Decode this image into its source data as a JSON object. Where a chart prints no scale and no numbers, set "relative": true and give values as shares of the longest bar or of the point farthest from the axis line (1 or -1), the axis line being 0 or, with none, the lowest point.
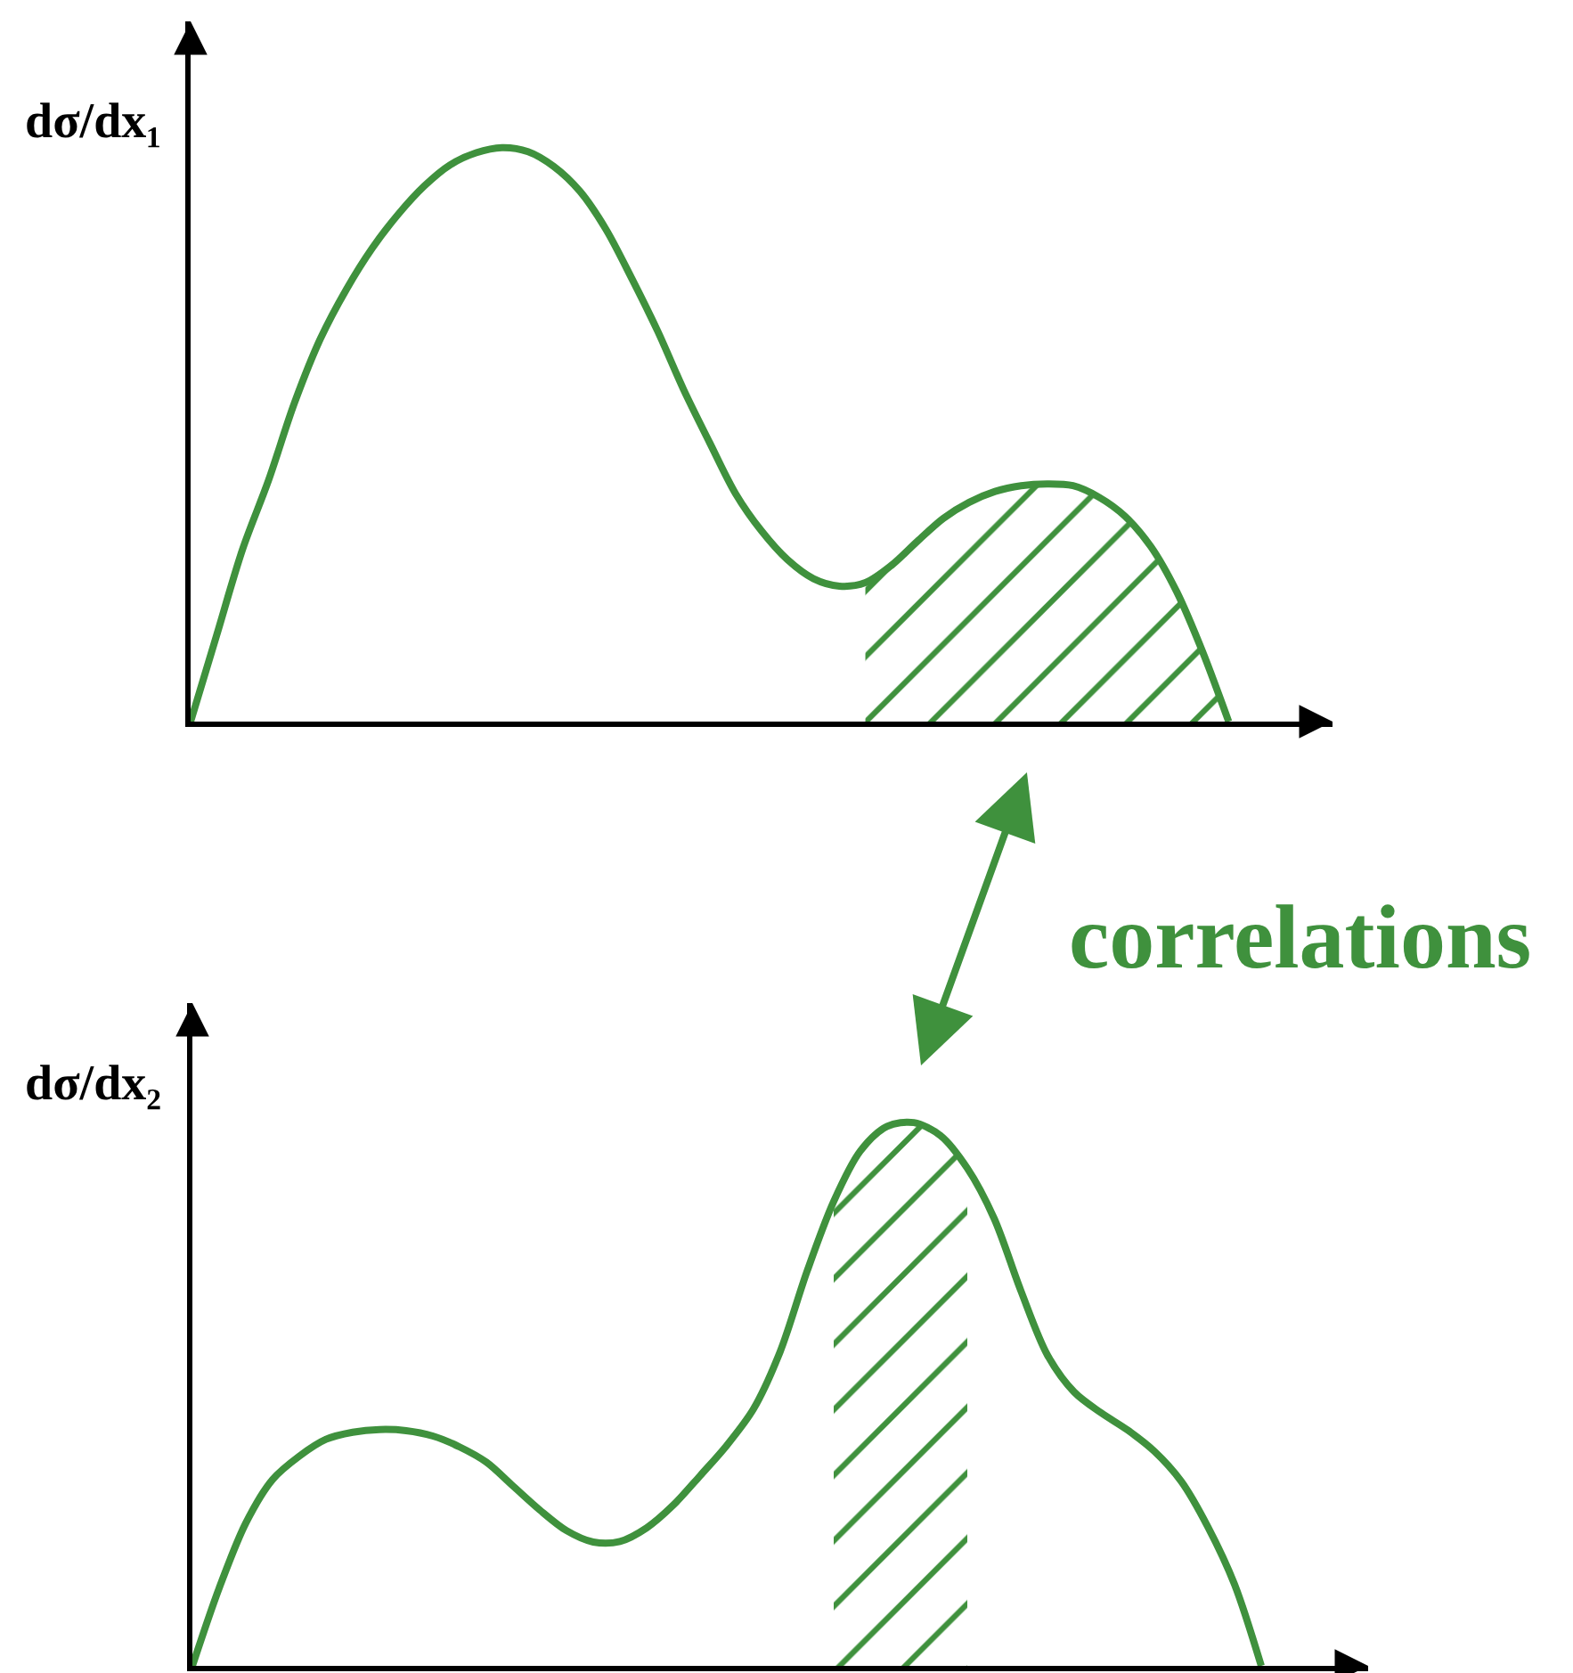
{
  "chart_data": [
    {
      "type": "line",
      "ylabel": "dσ/dx₁",
      "relative": true,
      "annotations": [
        "correlations"
      ],
      "categories": [
        null,
        null,
        null,
        null,
        null,
        null,
        null,
        null,
        null,
        null,
        null,
        null,
        null,
        null,
        null,
        null,
        null,
        null,
        null,
        null,
        null,
        null,
        null,
        null,
        null,
        null,
        null,
        null,
        null,
        null,
        null,
        null,
        null,
        null,
        null,
        null,
        null,
        null,
        null,
        null,
        null,
        null,
        null,
        null,
        null
      ],
      "series": [
        {
          "color": "#3f913d",
          "values": [
            0,
            0.15,
            0.3,
            0.42,
            0.555,
            0.667,
            0.753,
            0.825,
            0.884,
            0.933,
            0.97,
            0.991,
            1.0,
            0.993,
            0.967,
            0.924,
            0.858,
            0.772,
            0.68,
            0.578,
            0.486,
            0.397,
            0.332,
            0.282,
            0.249,
            0.236,
            0.242,
            0.272,
            0.314,
            0.354,
            0.382,
            0.401,
            0.411,
            0.414,
            0.411,
            0.391,
            0.358,
            0.305,
            0.226,
            0.121,
            0,
            null,
            null,
            null,
            null
          ]
        },
        {
          "type": "area",
          "color": "#3f913d",
          "values": [
            null,
            null,
            null,
            null,
            null,
            null,
            null,
            null,
            null,
            null,
            null,
            null,
            null,
            null,
            null,
            null,
            null,
            null,
            null,
            null,
            null,
            null,
            null,
            null,
            null,
            null,
            0.242,
            0.272,
            0.314,
            0.354,
            0.382,
            0.401,
            0.411,
            0.414,
            0.411,
            0.391,
            0.358,
            0.305,
            0.226,
            0.121,
            0,
            null,
            null,
            null,
            null
          ]
        }
      ]
    },
    {
      "type": "line",
      "ylabel": "dσ/dx₂",
      "relative": true,
      "categories": [
        null,
        null,
        null,
        null,
        null,
        null,
        null,
        null,
        null,
        null,
        null,
        null,
        null,
        null,
        null,
        null,
        null,
        null,
        null,
        null,
        null,
        null,
        null,
        null,
        null,
        null,
        null,
        null,
        null,
        null,
        null,
        null,
        null,
        null,
        null,
        null,
        null,
        null,
        null,
        null,
        null,
        null,
        null,
        null,
        null
      ],
      "series": [
        {
          "color": "#3f913d",
          "values": [
            0,
            0.143,
            0.263,
            0.343,
            0.386,
            0.417,
            0.43,
            0.435,
            0.433,
            0.423,
            0.403,
            0.375,
            0.331,
            0.287,
            0.249,
            0.228,
            0.229,
            0.254,
            0.296,
            0.35,
            0.406,
            0.473,
            0.579,
            0.726,
            0.855,
            0.948,
            0.993,
            1.0,
            0.976,
            0.916,
            0.824,
            0.691,
            0.572,
            0.504,
            0.466,
            0.434,
            0.395,
            0.34,
            0.256,
            0.15,
            0,
            null,
            null,
            null,
            null
          ]
        },
        {
          "type": "area",
          "color": "#3f913d",
          "values": [
            null,
            null,
            null,
            null,
            null,
            null,
            null,
            null,
            null,
            null,
            null,
            null,
            null,
            null,
            null,
            null,
            null,
            null,
            null,
            null,
            null,
            null,
            null,
            null,
            0.855,
            0.948,
            0.993,
            1.0,
            0.976,
            0.916,
            null,
            null,
            null,
            null,
            null,
            null,
            null,
            null,
            null,
            null,
            null,
            null,
            null,
            null,
            null
          ]
        }
      ]
    }
  ]
}
